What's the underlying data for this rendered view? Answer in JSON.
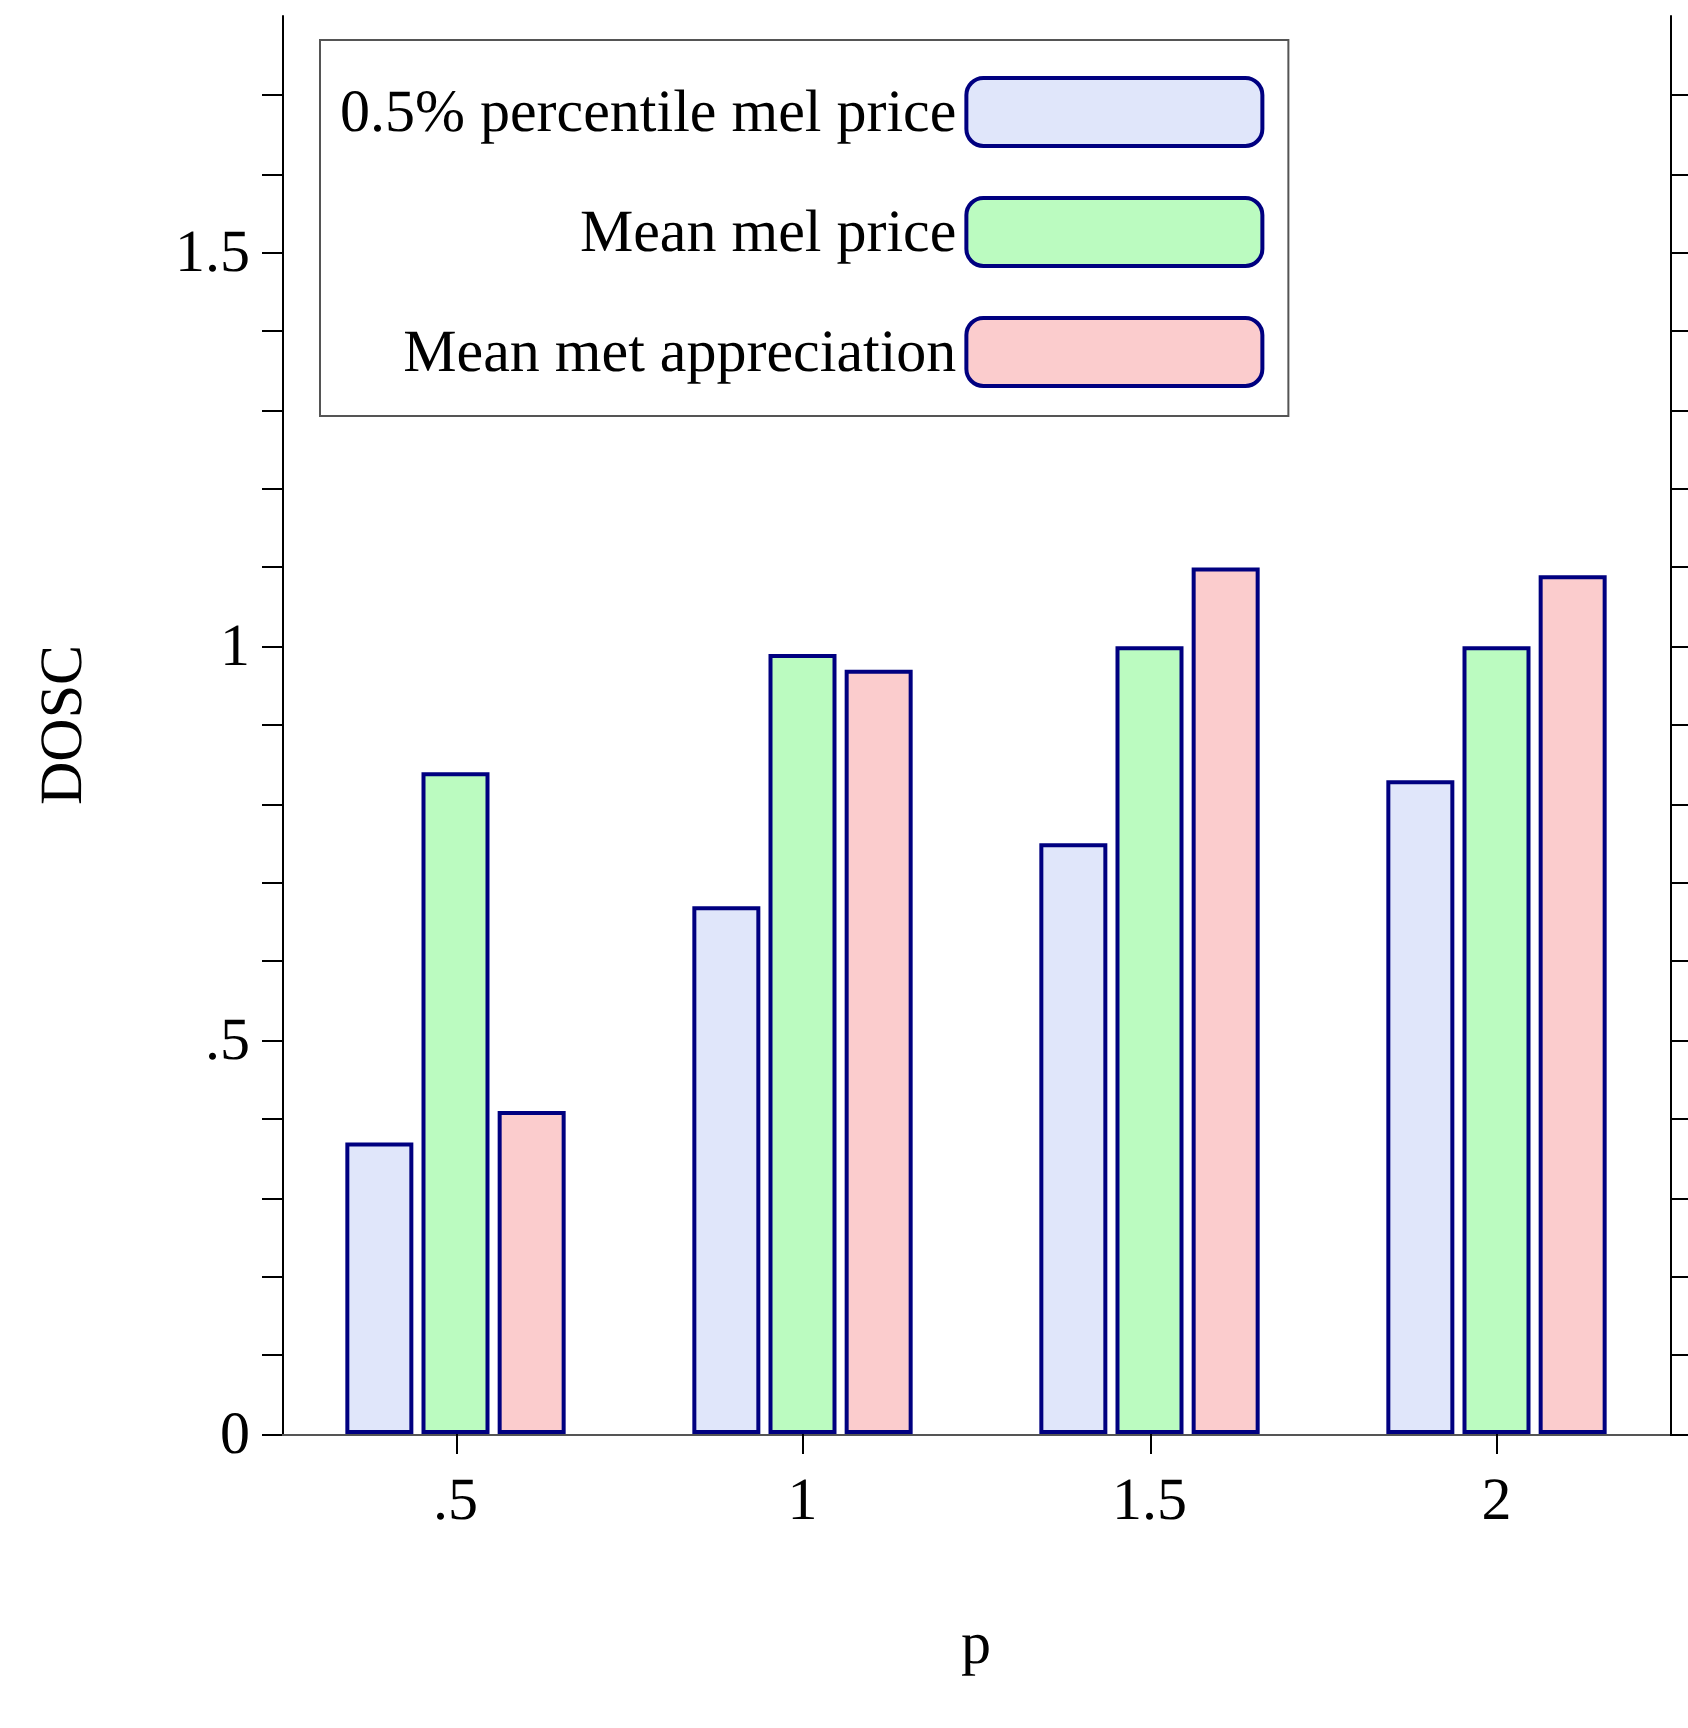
{
  "chart_data": {
    "type": "bar",
    "xlabel": "p",
    "ylabel": "DOSC",
    "categories": [
      ".5",
      "1",
      "1.5",
      "2"
    ],
    "series": [
      {
        "name": "0.5% percentile mel price",
        "color": "#e0e6fa",
        "values": [
          0.37,
          0.67,
          0.75,
          0.83
        ]
      },
      {
        "name": "Mean mel price",
        "color": "#bbfbc0",
        "values": [
          0.84,
          0.99,
          1.0,
          1.0
        ]
      },
      {
        "name": "Mean met appreciation",
        "color": "#fbcccd",
        "values": [
          0.41,
          0.97,
          1.1,
          1.09
        ]
      }
    ],
    "ylim": [
      0,
      1.8
    ],
    "yticks": [
      0,
      {
        "value": 0.1,
        "label": null
      },
      {
        "value": 0.2,
        "label": null
      },
      {
        "value": 0.3,
        "label": null
      },
      {
        "value": 0.4,
        "label": null
      },
      {
        "value": 0.5,
        "label": ".5"
      },
      {
        "value": 0.6,
        "label": null
      },
      {
        "value": 0.7,
        "label": null
      },
      {
        "value": 0.8,
        "label": null
      },
      {
        "value": 0.9,
        "label": null
      },
      1,
      {
        "value": 1.1,
        "label": null
      },
      {
        "value": 1.2,
        "label": null
      },
      {
        "value": 1.3,
        "label": null
      },
      {
        "value": 1.4,
        "label": null
      },
      1.5,
      {
        "value": 1.6,
        "label": null
      },
      {
        "value": 1.7,
        "label": null
      }
    ],
    "grid": false,
    "legend": "top left"
  }
}
